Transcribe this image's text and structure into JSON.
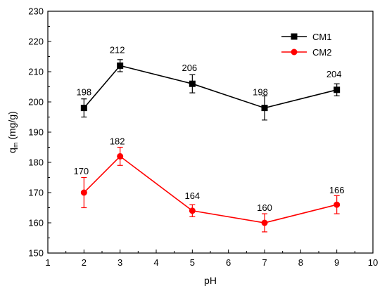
{
  "chart_data": {
    "type": "line",
    "title": "",
    "xlabel": "pH",
    "ylabel_main": "q",
    "ylabel_sub": "m",
    "ylabel_unit": " (mg/g)",
    "xlim": [
      1,
      10
    ],
    "ylim": [
      150,
      230
    ],
    "xticks": [
      1,
      2,
      3,
      4,
      5,
      6,
      7,
      8,
      9,
      10
    ],
    "yticks": [
      150,
      160,
      170,
      180,
      190,
      200,
      210,
      220,
      230
    ],
    "grid": false,
    "legend_position": "top-right",
    "x": [
      2,
      3,
      5,
      7,
      9
    ],
    "series": [
      {
        "name": "CM1",
        "color": "#000000",
        "marker": "square",
        "values": [
          198,
          212,
          206,
          198,
          204
        ],
        "errors": [
          3,
          2,
          3,
          4,
          2
        ],
        "labels": [
          "198",
          "212",
          "206",
          "198",
          "204"
        ]
      },
      {
        "name": "CM2",
        "color": "#ff0000",
        "marker": "circle",
        "values": [
          170,
          182,
          164,
          160,
          166
        ],
        "errors": [
          5,
          3,
          2,
          3,
          3
        ],
        "labels": [
          "170",
          "182",
          "164",
          "160",
          "166"
        ]
      }
    ]
  }
}
